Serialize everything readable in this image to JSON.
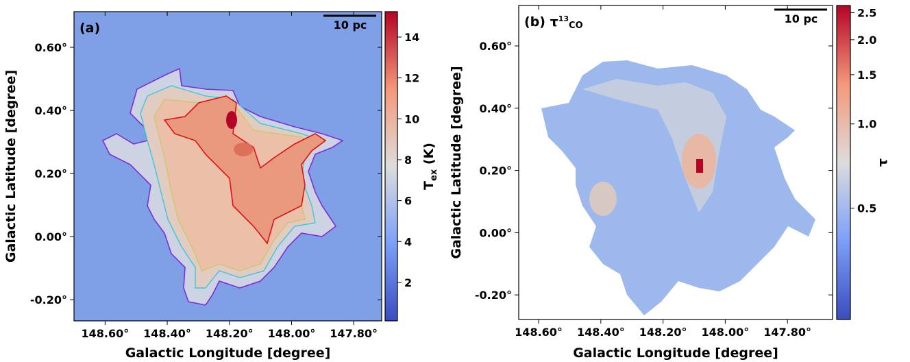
{
  "chart_data": [
    {
      "type": "heatmap",
      "title": "(a)",
      "scalebar": "10 pc",
      "xlabel": "Galactic Longitude [degree]",
      "ylabel": "Galactic Latitude [degree]",
      "xlim": [
        148.7,
        147.71
      ],
      "ylim": [
        -0.267,
        0.713
      ],
      "xticks": [
        {
          "value": 148.6,
          "label": "148.60°"
        },
        {
          "value": 148.4,
          "label": "148.40°"
        },
        {
          "value": 148.2,
          "label": "148.20°"
        },
        {
          "value": 148.0,
          "label": "148.00°"
        },
        {
          "value": 147.8,
          "label": "147.80°"
        }
      ],
      "yticks": [
        {
          "value": 0.6,
          "label": "0.60°"
        },
        {
          "value": 0.4,
          "label": "0.40°"
        },
        {
          "value": 0.2,
          "label": "0.20°"
        },
        {
          "value": 0.0,
          "label": "0.00°"
        },
        {
          "value": -0.2,
          "label": "-0.20°"
        }
      ],
      "colorbar_label": {
        "symbol": "T",
        "sub": "ex",
        "unit": " (K)"
      },
      "clim": [
        0.12,
        15.24
      ],
      "cticks": [
        2,
        4,
        6,
        8,
        10,
        12,
        14
      ],
      "colorscale": "linear"
    },
    {
      "type": "heatmap",
      "title": "(b) τ",
      "title_sup": "13",
      "title_sub": "CO",
      "scalebar": "10 pc",
      "xlabel": "Galactic Longitude [degree]",
      "ylabel": "Galactic Latitude [degree]",
      "xlim": [
        148.664,
        147.655
      ],
      "ylim": [
        -0.279,
        0.73
      ],
      "xticks": [
        {
          "value": 148.6,
          "label": "148.60°"
        },
        {
          "value": 148.4,
          "label": "148.40°"
        },
        {
          "value": 148.2,
          "label": "148.20°"
        },
        {
          "value": 148.0,
          "label": "148.00°"
        },
        {
          "value": 147.8,
          "label": "147.80°"
        }
      ],
      "yticks": [
        {
          "value": 0.6,
          "label": "0.60°"
        },
        {
          "value": 0.4,
          "label": "0.40°"
        },
        {
          "value": 0.2,
          "label": "0.20°"
        },
        {
          "value": 0.0,
          "label": "0.00°"
        },
        {
          "value": -0.2,
          "label": "-0.20°"
        }
      ],
      "colorbar_label": {
        "symbol": "τ"
      },
      "clim": [
        0.2,
        2.65
      ],
      "cticks": [
        {
          "value": 0.5,
          "label": "0.5"
        },
        {
          "value": 1.0,
          "label": "1.0"
        },
        {
          "value": 1.5,
          "label": "1.5"
        },
        {
          "value": 2.0,
          "label": "2.0"
        },
        {
          "value": 2.5,
          "label": "2.5"
        }
      ],
      "colorscale": "log"
    }
  ]
}
